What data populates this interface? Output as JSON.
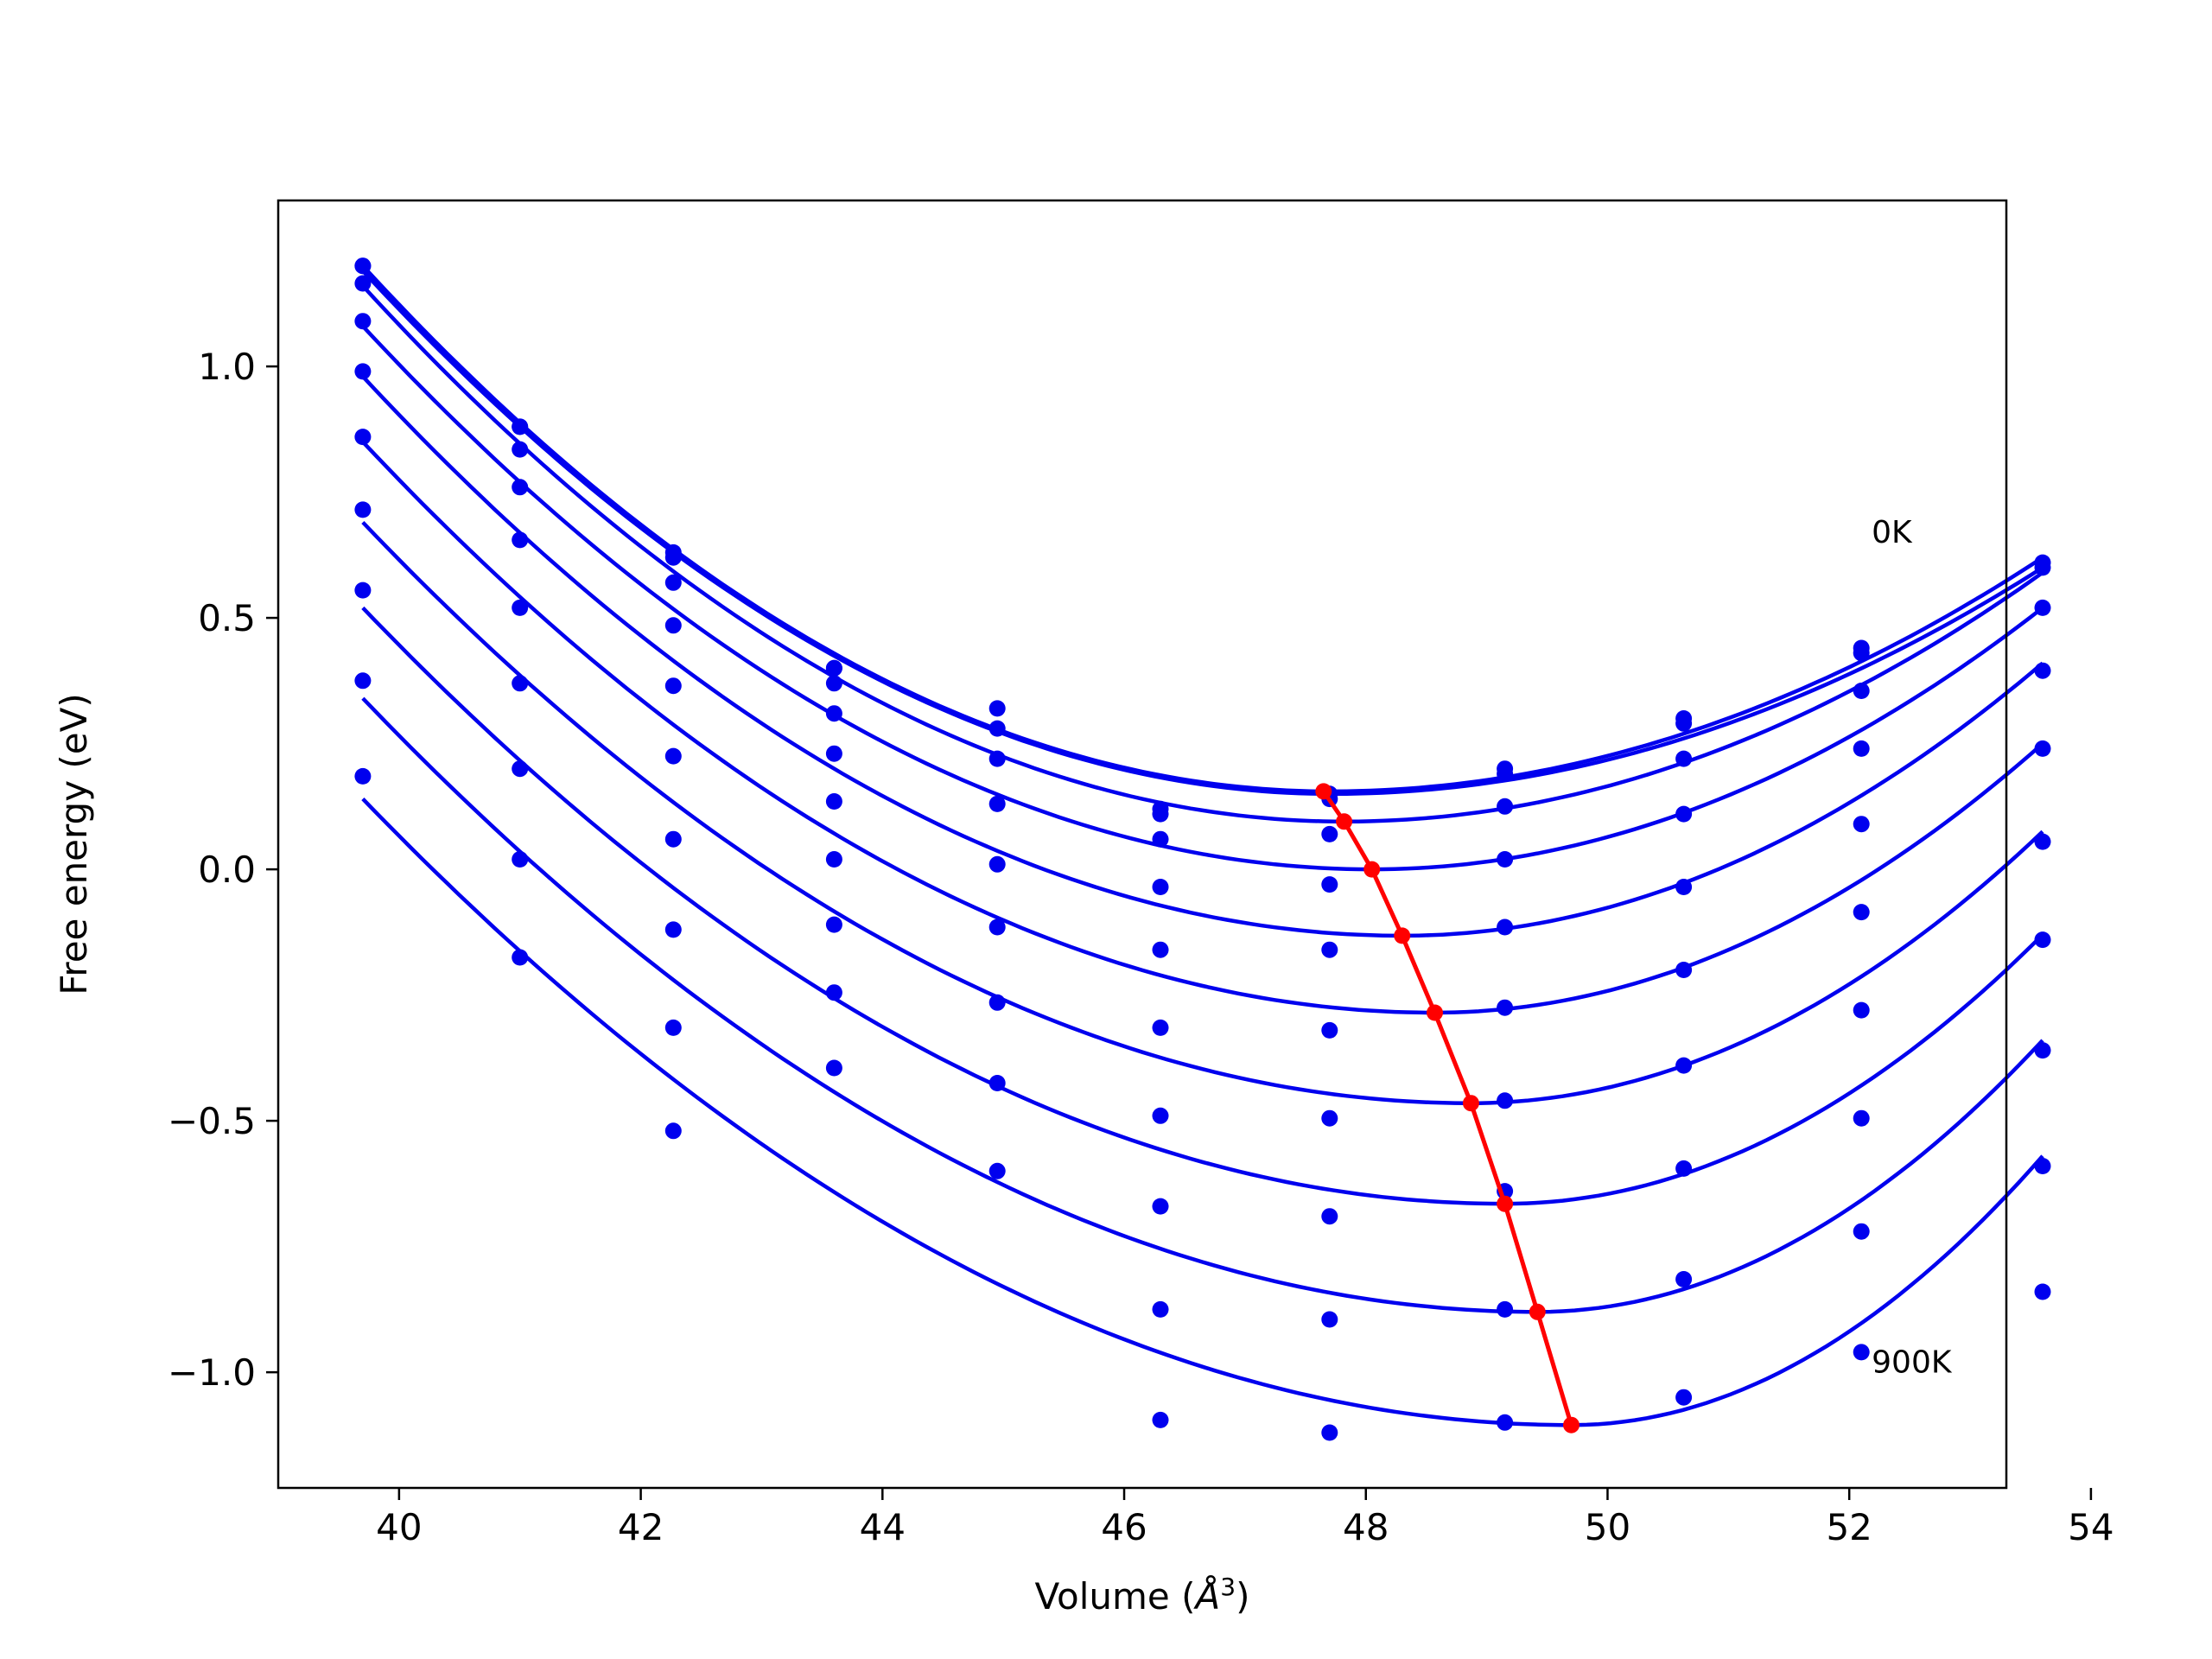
{
  "chart_data": {
    "type": "line",
    "title": "",
    "xlabel_prefix": "Volume (",
    "xlabel_unit": "Å",
    "xlabel_exp": "3",
    "xlabel_suffix": ")",
    "ylabel": "Free energy (eV)",
    "xlim": [
      39.0,
      53.3
    ],
    "ylim": [
      -1.23,
      1.33
    ],
    "xticks": [
      40,
      42,
      44,
      46,
      48,
      50,
      52,
      54
    ],
    "xtick_labels": [
      "40",
      "42",
      "44",
      "46",
      "48",
      "50",
      "52",
      "54"
    ],
    "yticks": [
      -1.0,
      -0.5,
      0.0,
      0.5,
      1.0
    ],
    "ytick_labels": [
      "−1.0",
      "−0.5",
      "0.0",
      "0.5",
      "1.0"
    ],
    "grid": false,
    "colors": {
      "curves": "#0000ee",
      "points": "#0000ee",
      "equilibrium": "#ff0000"
    },
    "volumes": [
      39.7,
      41.0,
      42.27,
      43.6,
      44.95,
      46.3,
      47.7,
      49.15,
      50.63,
      52.1,
      53.6
    ],
    "annotations": [
      {
        "text": "0K",
        "x": 52.1,
        "y": 0.67
      },
      {
        "text": "900K",
        "x": 52.1,
        "y": -0.98
      }
    ],
    "series": [
      {
        "fit": {
          "v0": 47.7,
          "f0": 0.155,
          "x_start": 39.7,
          "x_end": 53.6,
          "y_start": 1.2,
          "y_end": 0.62
        },
        "points": [
          1.2,
          0.88,
          0.63,
          0.4,
          0.32,
          0.12,
          0.15,
          0.2,
          0.3,
          0.44,
          0.61
        ]
      },
      {
        "fit": {
          "v0": 47.72,
          "f0": 0.15,
          "x_start": 39.7,
          "x_end": 53.6,
          "y_start": 1.19,
          "y_end": 0.6
        },
        "points": [
          1.2,
          0.88,
          0.62,
          0.4,
          0.28,
          0.11,
          0.14,
          0.19,
          0.29,
          0.43,
          0.6
        ]
      },
      {
        "fit": {
          "v0": 47.82,
          "f0": 0.095,
          "x_start": 39.7,
          "x_end": 53.6,
          "y_start": 1.16,
          "y_end": 0.59
        },
        "points": [
          1.165,
          0.835,
          0.57,
          0.37,
          0.22,
          0.06,
          0.07,
          0.125,
          0.22,
          0.355,
          0.52
        ]
      },
      {
        "fit": {
          "v0": 48.05,
          "f0": 0.0,
          "x_start": 39.7,
          "x_end": 53.6,
          "y_start": 1.08,
          "y_end": 0.52
        },
        "points": [
          1.09,
          0.76,
          0.485,
          0.31,
          0.13,
          -0.035,
          -0.03,
          0.02,
          0.11,
          0.24,
          0.395
        ]
      },
      {
        "fit": {
          "v0": 48.3,
          "f0": -0.132,
          "x_start": 39.7,
          "x_end": 53.6,
          "y_start": 0.98,
          "y_end": 0.41
        },
        "points": [
          0.99,
          0.655,
          0.365,
          0.23,
          0.01,
          -0.16,
          -0.16,
          -0.115,
          -0.035,
          0.09,
          0.24
        ]
      },
      {
        "fit": {
          "v0": 48.57,
          "f0": -0.285,
          "x_start": 39.7,
          "x_end": 53.6,
          "y_start": 0.85,
          "y_end": 0.25
        },
        "points": [
          0.86,
          0.52,
          0.225,
          0.135,
          -0.115,
          -0.315,
          -0.32,
          -0.275,
          -0.2,
          -0.085,
          0.055
        ]
      },
      {
        "fit": {
          "v0": 48.87,
          "f0": -0.465,
          "x_start": 39.7,
          "x_end": 53.6,
          "y_start": 0.69,
          "y_end": 0.075
        },
        "points": [
          0.715,
          0.37,
          0.06,
          0.02,
          -0.265,
          -0.49,
          -0.495,
          -0.46,
          -0.39,
          -0.28,
          -0.14
        ]
      },
      {
        "fit": {
          "v0": 49.15,
          "f0": -0.665,
          "x_start": 39.7,
          "x_end": 53.6,
          "y_start": 0.52,
          "y_end": -0.13
        },
        "points": [
          0.555,
          0.2,
          -0.12,
          -0.11,
          -0.425,
          -0.67,
          -0.69,
          -0.64,
          -0.595,
          -0.495,
          -0.36
        ]
      },
      {
        "fit": {
          "v0": 49.42,
          "f0": -0.88,
          "x_start": 39.7,
          "x_end": 53.6,
          "y_start": 0.34,
          "y_end": -0.34
        },
        "points": [
          0.375,
          0.02,
          -0.315,
          -0.245,
          -0.6,
          -0.875,
          -0.895,
          -0.875,
          -0.815,
          -0.72,
          -0.59
        ]
      },
      {
        "fit": {
          "v0": 49.7,
          "f0": -1.105,
          "x_start": 39.7,
          "x_end": 53.6,
          "y_start": 0.14,
          "y_end": -0.57
        },
        "points": [
          0.185,
          -0.175,
          -0.52,
          -0.395,
          null,
          -1.095,
          -1.12,
          -1.1,
          -1.05,
          -0.96,
          -0.84
        ]
      }
    ],
    "equilibrium": {
      "x": [
        47.65,
        47.82,
        48.05,
        48.3,
        48.57,
        48.87,
        49.15,
        49.42,
        49.7
      ],
      "y": [
        0.155,
        0.095,
        0.0,
        -0.132,
        -0.285,
        -0.465,
        -0.665,
        -0.88,
        -1.105
      ]
    }
  }
}
